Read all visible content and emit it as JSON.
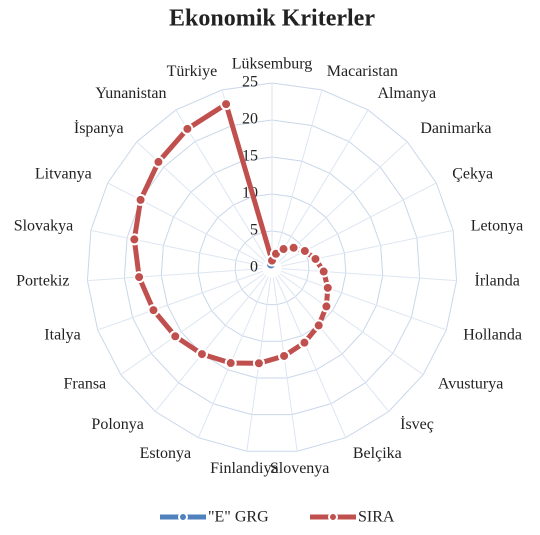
{
  "chart_data": {
    "type": "radar",
    "title": "Ekonomik Kriterler",
    "categories": [
      "Lüksemburg",
      "Macaristan",
      "Almanya",
      "Danimarka",
      "Çekya",
      "Letonya",
      "İrlanda",
      "Hollanda",
      "Avusturya",
      "İsveç",
      "Belçika",
      "Slovenya",
      "Finlandiya",
      "Estonya",
      "Polonya",
      "Fransa",
      "Italya",
      "Portekiz",
      "Slovakya",
      "Litvanya",
      "İspanya",
      "Yunanistan",
      "Türkiye"
    ],
    "series": [
      {
        "name": "\"E\" GRG",
        "color": "#4f81bd",
        "values": [
          0.5,
          0.5,
          0.5,
          0.5,
          0.5,
          0.5,
          0.5,
          0.5,
          0.5,
          0.5,
          0.5,
          0.5,
          0.5,
          0.5,
          0.5,
          0.5,
          0.5,
          0.5,
          0.5,
          0.5,
          0.5,
          0.5,
          0.5
        ]
      },
      {
        "name": "SIRA",
        "color": "#c0504d",
        "values": [
          1,
          2,
          3,
          4,
          5,
          6,
          7,
          8,
          9,
          10,
          11,
          12,
          13,
          14,
          15,
          16,
          17,
          18,
          19,
          20,
          21,
          22,
          23
        ]
      }
    ],
    "ylim": [
      0,
      25
    ],
    "yticks": [
      0,
      5,
      10,
      15,
      20,
      25
    ],
    "grid": true,
    "legend": "bottom"
  }
}
